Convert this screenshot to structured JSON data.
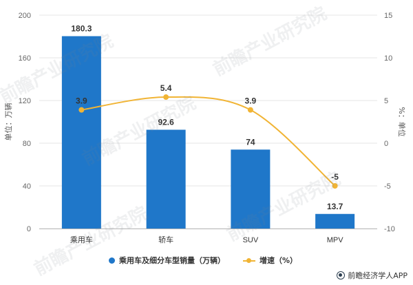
{
  "chart_data": {
    "type": "bar",
    "categories": [
      "乘用车",
      "轿车",
      "SUV",
      "MPV"
    ],
    "series": [
      {
        "name": "乘用车及细分车型销量（万辆）",
        "kind": "bar",
        "axis": "left",
        "color": "#1f77c9",
        "values": [
          180.3,
          92.6,
          74,
          13.7
        ],
        "labels": [
          "180.3",
          "92.6",
          "74",
          "13.7"
        ]
      },
      {
        "name": "增速（%）",
        "kind": "line",
        "axis": "right",
        "color": "#f1b434",
        "values": [
          3.9,
          5.4,
          3.9,
          -5
        ],
        "labels": [
          "3.9",
          "5.4",
          "3.9",
          "-5"
        ]
      }
    ],
    "ylabel": "单位：万辆",
    "y2label": "%：单位",
    "ylim": [
      0,
      200
    ],
    "yticks": [
      "0",
      "40",
      "80",
      "120",
      "160",
      "200"
    ],
    "y2lim": [
      -10,
      15
    ],
    "y2ticks": [
      "-10",
      "-5",
      "0",
      "5",
      "10",
      "15"
    ],
    "grid": true,
    "legend": "bottom-center"
  },
  "watermark": "前瞻产业研究院",
  "source": "前瞻经济学人APP",
  "icons": {
    "source": "logo-icon"
  }
}
